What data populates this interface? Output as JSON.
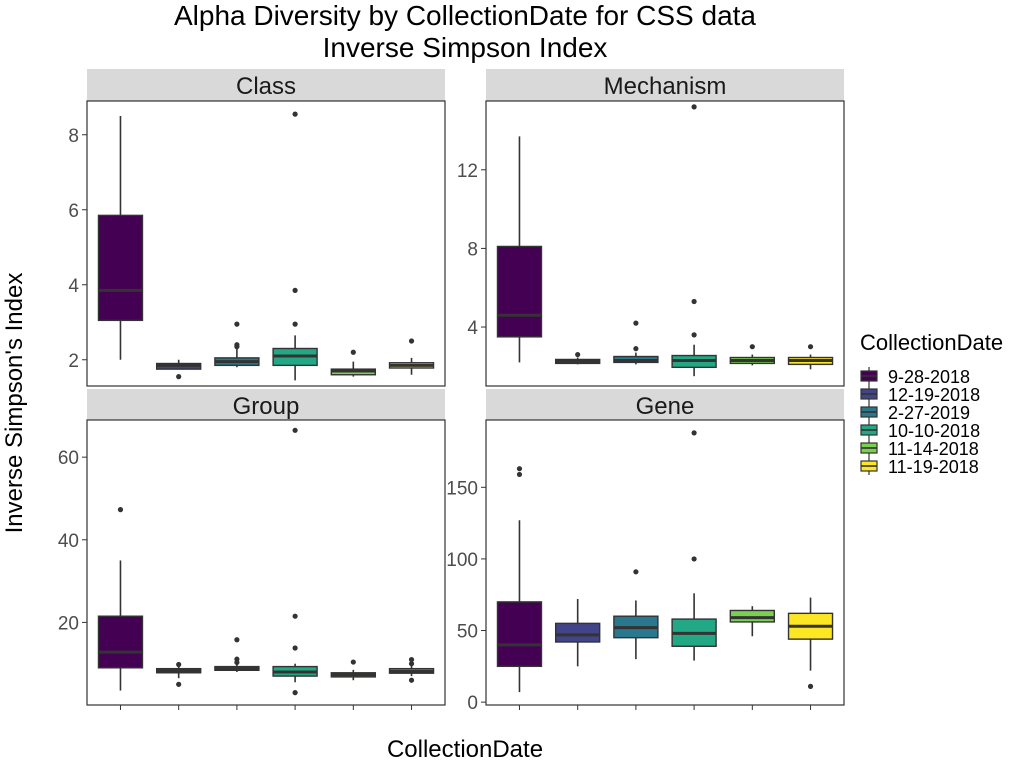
{
  "chart_data": {
    "type": "box",
    "title": "Alpha Diversity by CollectionDate for CSS data",
    "subtitle": "Inverse Simpson Index",
    "xlabel": "CollectionDate",
    "ylabel": "Inverse Simpson's Index",
    "legend": {
      "title": "CollectionDate",
      "position": "right",
      "entries": [
        "9-28-2018",
        "12-19-2018",
        "2-27-2019",
        "10-10-2018",
        "11-14-2018",
        "11-19-2018"
      ]
    },
    "series_colors": [
      "#440154",
      "#414487",
      "#2A788E",
      "#22A884",
      "#7AD151",
      "#FDE725"
    ],
    "grid": false,
    "x_tick_labels": false,
    "panels": [
      {
        "name": "Class",
        "ylim": [
          1.3,
          8.9
        ],
        "yticks": [
          2,
          4,
          6,
          8
        ],
        "boxes": [
          {
            "lw": 2.0,
            "q1": 3.05,
            "med": 3.85,
            "q3": 5.85,
            "uw": 8.5,
            "out": []
          },
          {
            "lw": 1.75,
            "q1": 1.75,
            "med": 1.85,
            "q3": 1.9,
            "uw": 2.0,
            "out": [
              1.55
            ]
          },
          {
            "lw": 1.8,
            "q1": 1.85,
            "med": 1.95,
            "q3": 2.05,
            "uw": 2.3,
            "out": [
              2.35,
              2.4,
              2.95
            ]
          },
          {
            "lw": 1.45,
            "q1": 1.85,
            "med": 2.1,
            "q3": 2.3,
            "uw": 2.65,
            "out": [
              2.95,
              3.85,
              8.55
            ]
          },
          {
            "lw": 1.55,
            "q1": 1.6,
            "med": 1.7,
            "q3": 1.75,
            "uw": 1.95,
            "out": [
              2.2
            ]
          },
          {
            "lw": 1.6,
            "q1": 1.78,
            "med": 1.85,
            "q3": 1.92,
            "uw": 2.05,
            "out": [
              2.5
            ]
          }
        ]
      },
      {
        "name": "Mechanism",
        "ylim": [
          1.0,
          15.5
        ],
        "yticks": [
          4,
          8,
          12
        ],
        "boxes": [
          {
            "lw": 2.2,
            "q1": 3.5,
            "med": 4.6,
            "q3": 8.1,
            "uw": 13.7,
            "out": []
          },
          {
            "lw": 2.1,
            "q1": 2.15,
            "med": 2.25,
            "q3": 2.35,
            "uw": 2.45,
            "out": [
              2.6
            ]
          },
          {
            "lw": 2.1,
            "q1": 2.2,
            "med": 2.3,
            "q3": 2.5,
            "uw": 2.7,
            "out": [
              2.9,
              4.2
            ]
          },
          {
            "lw": 1.5,
            "q1": 1.95,
            "med": 2.3,
            "q3": 2.55,
            "uw": 3.1,
            "out": [
              3.6,
              5.3,
              15.2
            ]
          },
          {
            "lw": 2.05,
            "q1": 2.15,
            "med": 2.3,
            "q3": 2.45,
            "uw": 2.6,
            "out": [
              3.0
            ]
          },
          {
            "lw": 1.85,
            "q1": 2.1,
            "med": 2.3,
            "q3": 2.45,
            "uw": 2.6,
            "out": [
              3.0
            ]
          }
        ]
      },
      {
        "name": "Group",
        "ylim": [
          0,
          69
        ],
        "yticks": [
          20,
          40,
          60
        ],
        "boxes": [
          {
            "lw": 3.5,
            "q1": 9.0,
            "med": 12.8,
            "q3": 21.5,
            "uw": 35.0,
            "out": [
              47.3
            ]
          },
          {
            "lw": 6.5,
            "q1": 7.8,
            "med": 8.3,
            "q3": 8.8,
            "uw": 9.5,
            "out": [
              5.0,
              9.8
            ]
          },
          {
            "lw": 8.0,
            "q1": 8.4,
            "med": 8.8,
            "q3": 9.3,
            "uw": 9.9,
            "out": [
              10.3,
              11.1,
              15.8
            ]
          },
          {
            "lw": 5.5,
            "q1": 7.0,
            "med": 8.0,
            "q3": 9.3,
            "uw": 10.0,
            "out": [
              3.0,
              13.8,
              21.5,
              66.5
            ]
          },
          {
            "lw": 6.0,
            "q1": 6.8,
            "med": 7.3,
            "q3": 7.8,
            "uw": 8.5,
            "out": [
              10.4
            ]
          },
          {
            "lw": 7.0,
            "q1": 7.7,
            "med": 8.2,
            "q3": 8.8,
            "uw": 9.5,
            "out": [
              6.0,
              10.0,
              11.0
            ]
          }
        ]
      },
      {
        "name": "Gene",
        "ylim": [
          -2,
          197
        ],
        "yticks": [
          0,
          50,
          100,
          150
        ],
        "boxes": [
          {
            "lw": 7.0,
            "q1": 25.0,
            "med": 40.0,
            "q3": 70.0,
            "uw": 127.0,
            "out": [
              159.0,
              163.0
            ]
          },
          {
            "lw": 25.0,
            "q1": 42.0,
            "med": 47.0,
            "q3": 55.0,
            "uw": 72.0,
            "out": []
          },
          {
            "lw": 30.0,
            "q1": 45.0,
            "med": 52.0,
            "q3": 60.0,
            "uw": 71.0,
            "out": [
              91.0
            ]
          },
          {
            "lw": 29.0,
            "q1": 39.0,
            "med": 48.0,
            "q3": 58.0,
            "uw": 76.0,
            "out": [
              100.0,
              188.0
            ]
          },
          {
            "lw": 46.0,
            "q1": 56.0,
            "med": 59.0,
            "q3": 64.0,
            "uw": 67.0,
            "out": []
          },
          {
            "lw": 22.0,
            "q1": 44.0,
            "med": 53.0,
            "q3": 62.0,
            "uw": 73.0,
            "out": [
              11.0
            ]
          }
        ]
      }
    ]
  }
}
